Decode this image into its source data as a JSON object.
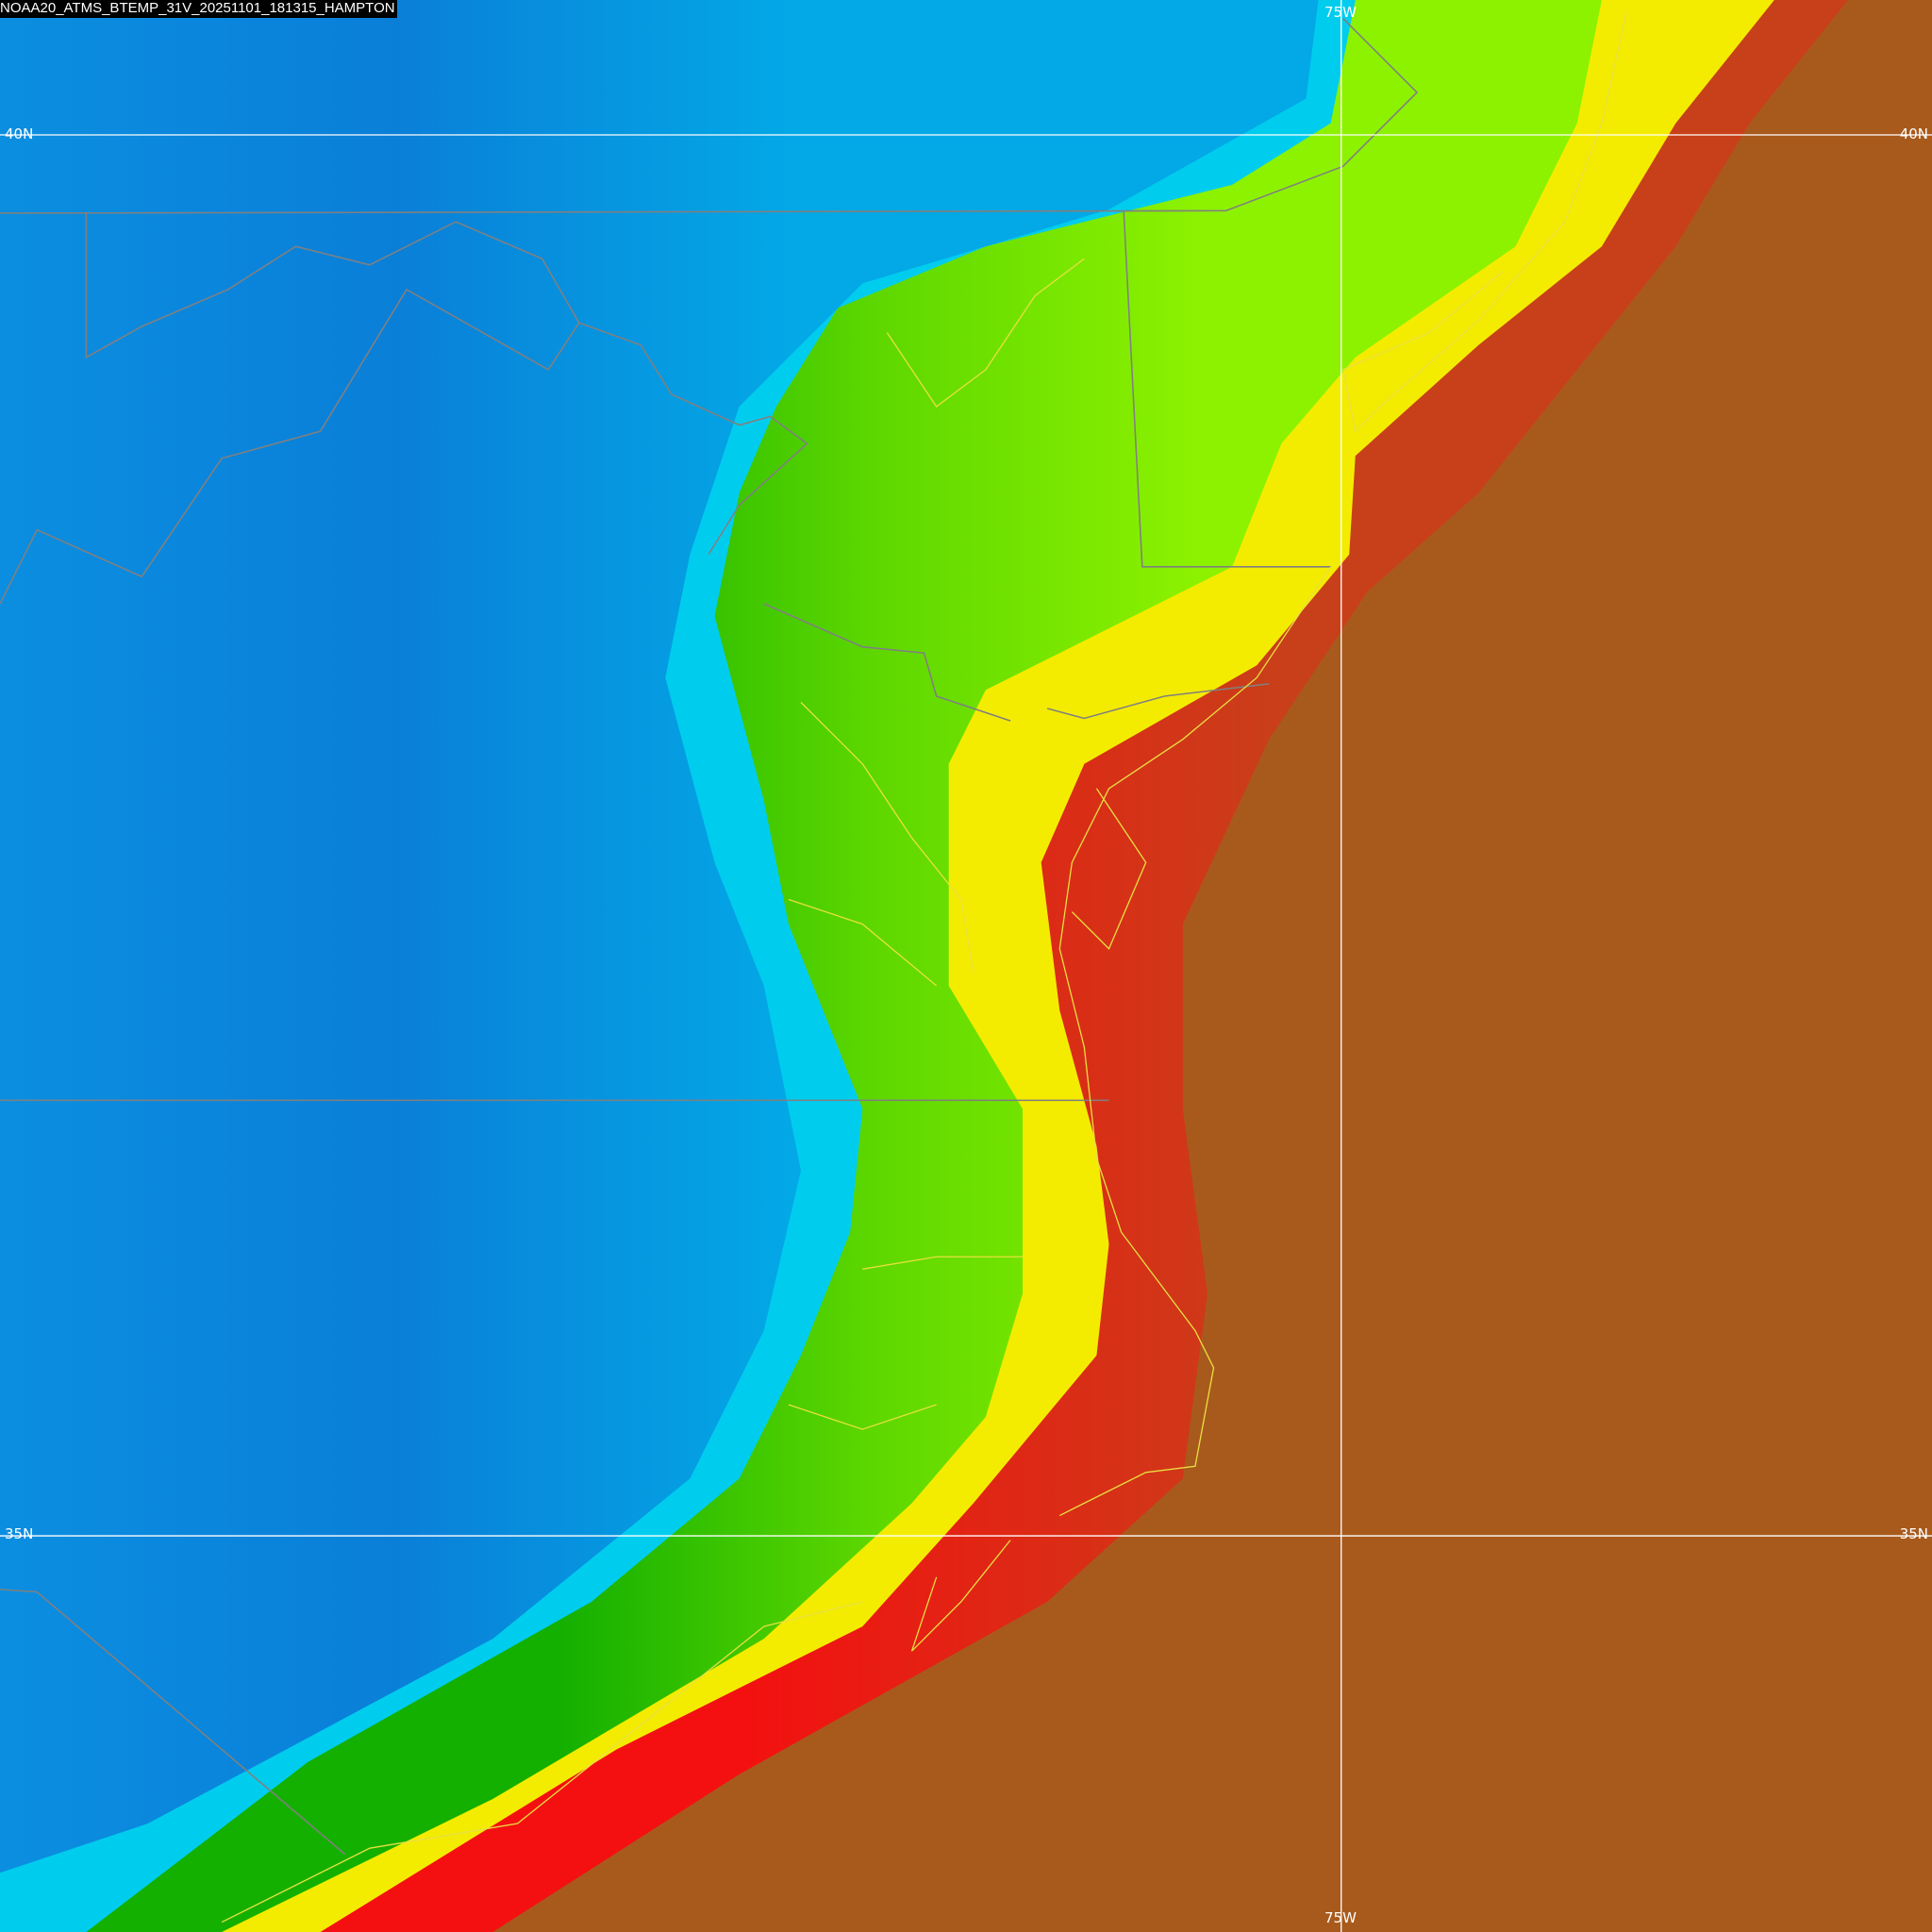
{
  "title": "NOAA20_ATMS_BTEMP_31V_20251101_181315_HAMPTON",
  "grid_labels": {
    "lat_40_left": "40N",
    "lat_40_right": "40N",
    "lat_35_left": "35N",
    "lat_35_right": "35N",
    "lon_75_top": "75W",
    "lon_75_bottom": "75W"
  },
  "colors": {
    "cold": "#0a86d8",
    "cyan": "#00d2f0",
    "green": "#16b400",
    "lime": "#86f000",
    "yellow": "#f4ec00",
    "red": "#f41010",
    "warm": "#a85a1c",
    "coastline": "#e8e040",
    "boundary": "#808080",
    "gridline": "#ffffff"
  }
}
